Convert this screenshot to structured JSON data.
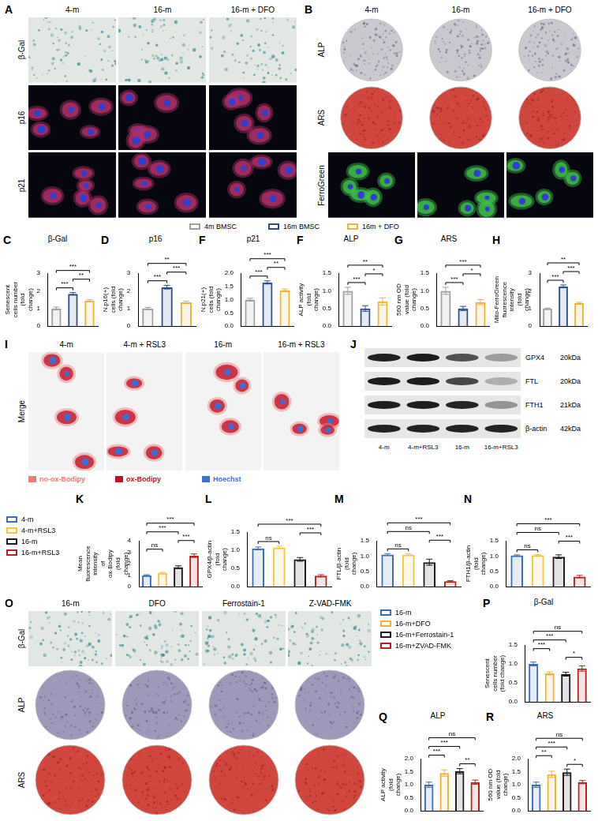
{
  "image_panels": {
    "A": {
      "letter": "A",
      "columns": [
        "4-m",
        "16-m",
        "16-m + DFO"
      ],
      "rows": [
        "β-Gal",
        "p16",
        "p21"
      ]
    },
    "B": {
      "letter": "B",
      "columns": [
        "4-m",
        "16-m",
        "16-m + DFO"
      ],
      "rows": [
        "ALP",
        "ARS",
        "FerroGreen"
      ]
    },
    "I": {
      "letter": "I",
      "columns": [
        "4-m",
        "4-m + RSL3",
        "16-m",
        "16-m + RSL3"
      ],
      "rows": [
        "Merge"
      ],
      "stains": [
        {
          "name": "no-ox-Bodipy",
          "color": "#f07a7a"
        },
        {
          "name": "ox-Bodipy",
          "color": "#c0142a"
        },
        {
          "name": "Hoechst",
          "color": "#3a6fd8"
        }
      ]
    },
    "O": {
      "letter": "O",
      "columns": [
        "16-m",
        "DFO",
        "Ferrostain-1",
        "Z-VAD-FMK"
      ],
      "rows": [
        "β-Gal",
        "ALP",
        "ARS"
      ]
    }
  },
  "blot": {
    "letter": "J",
    "lanes": [
      "4-m",
      "4-m+RSL3",
      "16-m",
      "16-m+RSL3"
    ],
    "proteins": [
      {
        "name": "GPX4",
        "size": "20kDa"
      },
      {
        "name": "FTL",
        "size": "20kDa"
      },
      {
        "name": "FTH1",
        "size": "21kDa"
      },
      {
        "name": "β-actin",
        "size": "42kDa"
      }
    ]
  },
  "legends": [
    {
      "entries": [
        {
          "name": "4m BMSC",
          "color": "#9e9e9e"
        },
        {
          "name": "16m BMSC",
          "color": "#2b4c8c"
        },
        {
          "name": "16m + DFO",
          "color": "#f2b134"
        }
      ]
    },
    {
      "entries": [
        {
          "name": "4-m",
          "color": "#3a6db5"
        },
        {
          "name": "4-m+RSL3",
          "color": "#f4c542"
        },
        {
          "name": "16-m",
          "color": "#1a1a1a"
        },
        {
          "name": "16-m+RSL3",
          "color": "#b22222"
        }
      ]
    },
    {
      "entries": [
        {
          "name": "16-m",
          "color": "#3a6db5"
        },
        {
          "name": "16-m+DFO",
          "color": "#f2b134"
        },
        {
          "name": "16-m+Ferrostain-1",
          "color": "#1a1a1a"
        },
        {
          "name": "16-m+ZVAD-FMK",
          "color": "#b22222"
        }
      ]
    }
  ],
  "chart_data": [
    {
      "type": "bar",
      "letter": "C",
      "title": "β-Gal",
      "y_label": "Senescent cells number (fold change)",
      "categories": [
        "4m BMSC",
        "16m BMSC",
        "16m + DFO"
      ],
      "colors": [
        "#9e9e9e",
        "#2b4c8c",
        "#f2b134"
      ],
      "values": [
        1.0,
        1.83,
        1.45
      ],
      "errors": [
        0.08,
        0.07,
        0.05
      ],
      "ylim": [
        0,
        3
      ],
      "yticks": [
        0,
        1,
        2,
        3
      ],
      "grid": false,
      "tick_labels": "y",
      "brackets": [
        {
          "from": 0,
          "to": 1,
          "label": "***"
        },
        {
          "from": 1,
          "to": 2,
          "label": "**"
        },
        {
          "from": 0,
          "to": 2,
          "label": "***"
        }
      ]
    },
    {
      "type": "bar",
      "letter": "D",
      "title": "p16",
      "y_label": "N.p16(+) cells (fold change)",
      "categories": [
        "4m BMSC",
        "16m BMSC",
        "16m + DFO"
      ],
      "colors": [
        "#9e9e9e",
        "#2b4c8c",
        "#f2b134"
      ],
      "values": [
        1.0,
        2.2,
        1.35
      ],
      "errors": [
        0.06,
        0.1,
        0.07
      ],
      "ylim": [
        0,
        3
      ],
      "yticks": [
        0,
        1,
        2,
        3
      ],
      "grid": false,
      "tick_labels": "y",
      "brackets": [
        {
          "from": 0,
          "to": 1,
          "label": "***"
        },
        {
          "from": 1,
          "to": 2,
          "label": "***"
        },
        {
          "from": 0,
          "to": 2,
          "label": "**"
        }
      ]
    },
    {
      "type": "bar",
      "letter": "F",
      "title": "p21",
      "y_label": "N.p21(+) cells (fold change)",
      "categories": [
        "4m BMSC",
        "16m BMSC",
        "16m + DFO"
      ],
      "colors": [
        "#9e9e9e",
        "#2b4c8c",
        "#f2b134"
      ],
      "values": [
        1.0,
        1.65,
        1.35
      ],
      "errors": [
        0.05,
        0.06,
        0.05
      ],
      "ylim": [
        0,
        2
      ],
      "yticks": [
        {
          "value": 0,
          "label": "0.0"
        },
        {
          "value": 0.5,
          "label": "0.5"
        },
        {
          "value": 1,
          "label": "1.0"
        },
        {
          "value": 1.5,
          "label": "1.5"
        },
        {
          "value": 2,
          "label": "2.0"
        }
      ],
      "grid": false,
      "tick_labels": "y",
      "brackets": [
        {
          "from": 0,
          "to": 1,
          "label": "***"
        },
        {
          "from": 1,
          "to": 2,
          "label": "**"
        },
        {
          "from": 0,
          "to": 2,
          "label": "***"
        }
      ]
    },
    {
      "type": "bar",
      "letter": "F",
      "title": "ALP",
      "y_label": "ALP activity (fold change)",
      "categories": [
        "4m BMSC",
        "16m BMSC",
        "16m + DFO"
      ],
      "colors": [
        "#9e9e9e",
        "#2b4c8c",
        "#f2b134"
      ],
      "values": [
        1.0,
        0.5,
        0.7
      ],
      "errors": [
        0.1,
        0.08,
        0.1
      ],
      "ylim": [
        0,
        1.5
      ],
      "yticks": [
        {
          "value": 0,
          "label": "0.0"
        },
        {
          "value": 0.5,
          "label": "0.5"
        },
        {
          "value": 1,
          "label": "1.0"
        },
        {
          "value": 1.5,
          "label": "1.5"
        }
      ],
      "grid": false,
      "tick_labels": "y",
      "brackets": [
        {
          "from": 0,
          "to": 1,
          "label": "***"
        },
        {
          "from": 1,
          "to": 2,
          "label": "*"
        },
        {
          "from": 0,
          "to": 2,
          "label": "**"
        }
      ]
    },
    {
      "type": "bar",
      "letter": "G",
      "title": "ARS",
      "y_label": "560 nm OD value (fold change)",
      "categories": [
        "4m BMSC",
        "16m BMSC",
        "16m + DFO"
      ],
      "colors": [
        "#9e9e9e",
        "#2b4c8c",
        "#f2b134"
      ],
      "values": [
        1.0,
        0.5,
        0.68
      ],
      "errors": [
        0.1,
        0.06,
        0.07
      ],
      "ylim": [
        0,
        1.5
      ],
      "yticks": [
        {
          "value": 0,
          "label": "0.0"
        },
        {
          "value": 0.5,
          "label": "0.5"
        },
        {
          "value": 1,
          "label": "1.0"
        },
        {
          "value": 1.5,
          "label": "1.5"
        }
      ],
      "grid": false,
      "tick_labels": "y",
      "brackets": [
        {
          "from": 0,
          "to": 1,
          "label": "***"
        },
        {
          "from": 1,
          "to": 2,
          "label": "*"
        },
        {
          "from": 0,
          "to": 2,
          "label": "***"
        }
      ]
    },
    {
      "type": "bar",
      "letter": "H",
      "y_label": "Mito-FerroGreen fluorescence intensity (fold change)",
      "categories": [
        "4m BMSC",
        "16m BMSC",
        "16m + DFO"
      ],
      "colors": [
        "#9e9e9e",
        "#2b4c8c",
        "#f2b134"
      ],
      "values": [
        1.0,
        2.25,
        1.3
      ],
      "errors": [
        0.03,
        0.08,
        0.05
      ],
      "ylim": [
        0,
        3
      ],
      "yticks": [
        0,
        1,
        2,
        3
      ],
      "grid": false,
      "tick_labels": "y",
      "brackets": [
        {
          "from": 0,
          "to": 1,
          "label": "***"
        },
        {
          "from": 1,
          "to": 2,
          "label": "***"
        },
        {
          "from": 0,
          "to": 2,
          "label": "**"
        }
      ]
    },
    {
      "type": "bar",
      "letter": "K",
      "y_label": "Mean fluorescence intensity of ox-Bodipy (fold change)",
      "categories": [
        "4-m",
        "4-m+RSL3",
        "16-m",
        "16-m+RSL3"
      ],
      "colors": [
        "#3a6db5",
        "#f4c542",
        "#1a1a1a",
        "#b22222"
      ],
      "values": [
        1.0,
        1.2,
        1.7,
        2.7
      ],
      "errors": [
        0.04,
        0.05,
        0.12,
        0.15
      ],
      "ylim": [
        0,
        4
      ],
      "yticks": [
        0,
        1,
        2,
        3,
        4
      ],
      "grid": false,
      "tick_labels": "y",
      "brackets": [
        {
          "from": 0,
          "to": 1,
          "label": "ns"
        },
        {
          "from": 2,
          "to": 3,
          "label": "***"
        },
        {
          "from": 0,
          "to": 2,
          "label": "***"
        },
        {
          "from": 0,
          "to": 3,
          "label": "***"
        }
      ]
    },
    {
      "type": "bar",
      "letter": "L",
      "y_label": "GPX4/β-actin (fold change)",
      "categories": [
        "4-m",
        "4-m+RSL3",
        "16-m",
        "16-m+RSL3"
      ],
      "colors": [
        "#3a6db5",
        "#f4c542",
        "#1a1a1a",
        "#b22222"
      ],
      "values": [
        1.05,
        1.08,
        0.75,
        0.3
      ],
      "errors": [
        0.04,
        0.03,
        0.05,
        0.03
      ],
      "ylim": [
        0,
        1.5
      ],
      "yticks": [
        {
          "value": 0,
          "label": "0.0"
        },
        {
          "value": 0.5,
          "label": "0.5"
        },
        {
          "value": 1,
          "label": "1.0"
        },
        {
          "value": 1.5,
          "label": "1.5"
        }
      ],
      "grid": false,
      "tick_labels": "y",
      "brackets": [
        {
          "from": 0,
          "to": 1,
          "label": "ns"
        },
        {
          "from": 2,
          "to": 3,
          "label": "***"
        },
        {
          "from": 0,
          "to": 3,
          "label": "***"
        }
      ]
    },
    {
      "type": "bar",
      "letter": "M",
      "y_label": "FTL/β-actin (fold change)",
      "categories": [
        "4-m",
        "4-m+RSL3",
        "16-m",
        "16-m+RSL3"
      ],
      "colors": [
        "#3a6db5",
        "#f4c542",
        "#1a1a1a",
        "#b22222"
      ],
      "values": [
        1.05,
        1.05,
        0.8,
        0.18
      ],
      "errors": [
        0.03,
        0.03,
        0.1,
        0.02
      ],
      "ylim": [
        0,
        1.5
      ],
      "yticks": [
        {
          "value": 0,
          "label": "0.0"
        },
        {
          "value": 0.5,
          "label": "0.5"
        },
        {
          "value": 1,
          "label": "1.0"
        },
        {
          "value": 1.5,
          "label": "1.5"
        }
      ],
      "grid": false,
      "tick_labels": "y",
      "brackets": [
        {
          "from": 0,
          "to": 1,
          "label": "ns"
        },
        {
          "from": 2,
          "to": 3,
          "label": "***"
        },
        {
          "from": 0,
          "to": 2,
          "label": "ns"
        },
        {
          "from": 0,
          "to": 3,
          "label": "***"
        }
      ]
    },
    {
      "type": "bar",
      "letter": "N",
      "y_label": "FTH1/β-actin (fold change)",
      "categories": [
        "4-m",
        "4-m+RSL3",
        "16-m",
        "16-m+RSL3"
      ],
      "colors": [
        "#3a6db5",
        "#f4c542",
        "#1a1a1a",
        "#b22222"
      ],
      "values": [
        1.02,
        1.03,
        0.98,
        0.33
      ],
      "errors": [
        0.02,
        0.02,
        0.06,
        0.04
      ],
      "ylim": [
        0,
        1.5
      ],
      "yticks": [
        {
          "value": 0,
          "label": "0.0"
        },
        {
          "value": 0.5,
          "label": "0.5"
        },
        {
          "value": 1,
          "label": "1.0"
        },
        {
          "value": 1.5,
          "label": "1.5"
        }
      ],
      "grid": false,
      "tick_labels": "y",
      "brackets": [
        {
          "from": 0,
          "to": 1,
          "label": "ns"
        },
        {
          "from": 2,
          "to": 3,
          "label": "***"
        },
        {
          "from": 0,
          "to": 2,
          "label": "ns"
        },
        {
          "from": 0,
          "to": 3,
          "label": "***"
        }
      ]
    },
    {
      "type": "bar",
      "letter": "P",
      "title": "β-Gal",
      "y_label": "Senescent cells number (fold change)",
      "categories": [
        "16-m",
        "16-m+DFO",
        "16-m+Ferrostain-1",
        "16-m+ZVAD-FMK"
      ],
      "colors": [
        "#3a6db5",
        "#f2b134",
        "#1a1a1a",
        "#b22222"
      ],
      "values": [
        1.0,
        0.75,
        0.73,
        0.88
      ],
      "errors": [
        0.05,
        0.04,
        0.05,
        0.07
      ],
      "ylim": [
        0,
        1.5
      ],
      "yticks": [
        {
          "value": 0,
          "label": "0.0"
        },
        {
          "value": 0.5,
          "label": "0.5"
        },
        {
          "value": 1,
          "label": "1.0"
        },
        {
          "value": 1.5,
          "label": "1.5"
        }
      ],
      "grid": false,
      "tick_labels": "y",
      "brackets": [
        {
          "from": 2,
          "to": 3,
          "label": "*"
        },
        {
          "from": 0,
          "to": 1,
          "label": "***"
        },
        {
          "from": 0,
          "to": 2,
          "label": "***"
        },
        {
          "from": 0,
          "to": 3,
          "label": "ns"
        }
      ]
    },
    {
      "type": "bar",
      "letter": "Q",
      "title": "ALP",
      "y_label": "ALP activity (fold change)",
      "categories": [
        "16-m",
        "16-m+DFO",
        "16-m+Ferrostain-1",
        "16-m+ZVAD-FMK"
      ],
      "colors": [
        "#3a6db5",
        "#f2b134",
        "#1a1a1a",
        "#b22222"
      ],
      "values": [
        1.0,
        1.45,
        1.52,
        1.1
      ],
      "errors": [
        0.1,
        0.12,
        0.1,
        0.08
      ],
      "ylim": [
        0,
        2
      ],
      "yticks": [
        {
          "value": 0,
          "label": "0.0"
        },
        {
          "value": 0.5,
          "label": "0.5"
        },
        {
          "value": 1,
          "label": "1.0"
        },
        {
          "value": 1.5,
          "label": "1.5"
        },
        {
          "value": 2,
          "label": "2.0"
        }
      ],
      "grid": false,
      "tick_labels": "y",
      "brackets": [
        {
          "from": 2,
          "to": 3,
          "label": "**"
        },
        {
          "from": 0,
          "to": 1,
          "label": "***"
        },
        {
          "from": 0,
          "to": 2,
          "label": "***"
        },
        {
          "from": 0,
          "to": 3,
          "label": "ns"
        }
      ]
    },
    {
      "type": "bar",
      "letter": "R",
      "title": "ARS",
      "y_label": "560 nm OD value (fold change)",
      "categories": [
        "16-m",
        "16-m+DFO",
        "16-m+Ferrostain-1",
        "16-m+ZVAD-FMK"
      ],
      "colors": [
        "#3a6db5",
        "#f2b134",
        "#1a1a1a",
        "#b22222"
      ],
      "values": [
        1.0,
        1.4,
        1.48,
        1.1
      ],
      "errors": [
        0.1,
        0.12,
        0.12,
        0.06
      ],
      "ylim": [
        0,
        2
      ],
      "yticks": [
        {
          "value": 0,
          "label": "0.0"
        },
        {
          "value": 0.5,
          "label": "0.5"
        },
        {
          "value": 1,
          "label": "1.0"
        },
        {
          "value": 1.5,
          "label": "1.5"
        },
        {
          "value": 2,
          "label": "2.0"
        }
      ],
      "grid": false,
      "tick_labels": "y",
      "brackets": [
        {
          "from": 2,
          "to": 3,
          "label": "*"
        },
        {
          "from": 0,
          "to": 1,
          "label": "**"
        },
        {
          "from": 0,
          "to": 2,
          "label": "***"
        },
        {
          "from": 0,
          "to": 3,
          "label": "ns"
        }
      ]
    }
  ]
}
